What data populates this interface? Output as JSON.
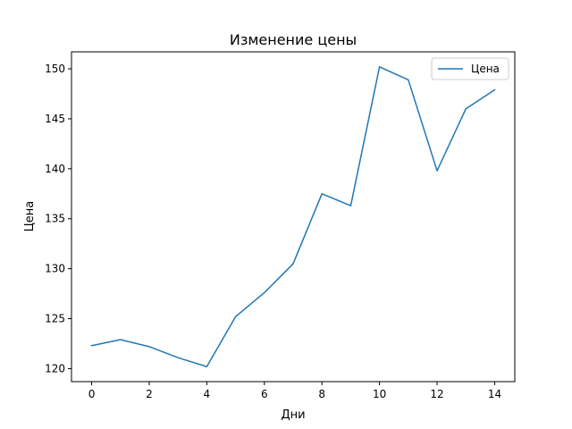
{
  "chart_data": {
    "type": "line",
    "title": "Изменение цены",
    "xlabel": "Дни",
    "ylabel": "Цена",
    "x": [
      0,
      1,
      2,
      3,
      4,
      5,
      6,
      7,
      8,
      9,
      10,
      11,
      12,
      13,
      14
    ],
    "series": [
      {
        "name": "Цена",
        "color": "#1f77b4",
        "values": [
          122.3,
          122.9,
          122.2,
          121.1,
          120.2,
          125.2,
          127.6,
          130.5,
          137.5,
          136.3,
          150.2,
          148.9,
          139.8,
          146.0,
          147.9
        ]
      }
    ],
    "xlim": [
      -0.7,
      14.7
    ],
    "ylim": [
      118.7,
      151.7
    ],
    "xticks": [
      0,
      2,
      4,
      6,
      8,
      10,
      12,
      14
    ],
    "yticks": [
      120,
      125,
      130,
      135,
      140,
      145,
      150
    ],
    "grid": false,
    "legend_position": "top-right"
  }
}
